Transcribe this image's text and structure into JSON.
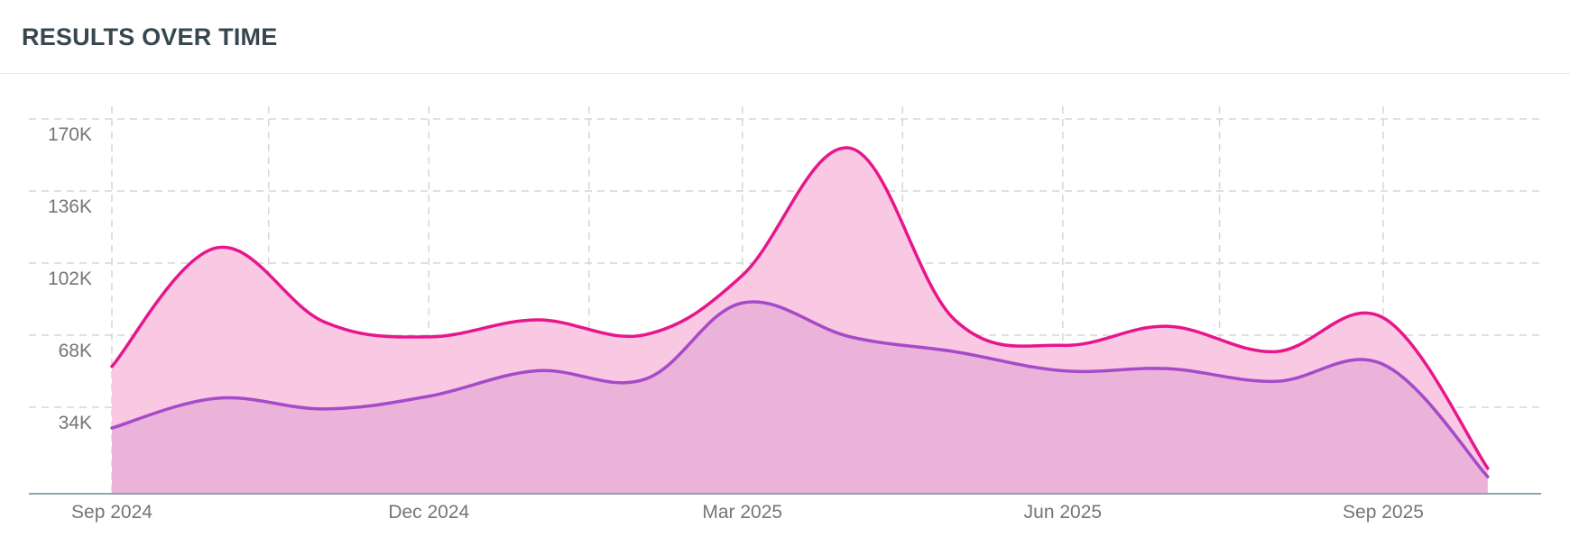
{
  "header": {
    "title": "RESULTS OVER TIME"
  },
  "chart_data": {
    "type": "area",
    "title": "RESULTS OVER TIME",
    "xlabel": "",
    "ylabel": "",
    "x": [
      "2024-09-01",
      "2024-10-01",
      "2024-11-01",
      "2024-12-01",
      "2025-01-01",
      "2025-02-01",
      "2025-03-01",
      "2025-04-01",
      "2025-05-01",
      "2025-06-01",
      "2025-07-01",
      "2025-08-01",
      "2025-09-01",
      "2025-10-01"
    ],
    "x_tick_labels": [
      "Sep 2024",
      "Dec 2024",
      "Mar 2025",
      "Jun 2025",
      "Sep 2025"
    ],
    "x_tick_values": [
      "2024-09-01",
      "2024-12-01",
      "2025-03-01",
      "2025-06-01",
      "2025-09-01"
    ],
    "grid_x": [
      "2024-09-01",
      "2024-10-16",
      "2024-12-01",
      "2025-01-16",
      "2025-03-01",
      "2025-04-16",
      "2025-06-01",
      "2025-07-16",
      "2025-09-01"
    ],
    "y_ticks": [
      34000,
      68000,
      102000,
      136000,
      170000
    ],
    "y_tick_labels": [
      "34K",
      "68K",
      "102K",
      "136K",
      "170K"
    ],
    "ylim": [
      0,
      170000
    ],
    "grid": true,
    "series": [
      {
        "color": "#e8168c",
        "fill": "#f9c8e3",
        "values": [
          60000,
          116000,
          81000,
          74000,
          82000,
          75000,
          103000,
          163000,
          82000,
          70000,
          79000,
          67000,
          83000,
          12000
        ]
      },
      {
        "color": "#a64ac9",
        "fill": "#e9aed8",
        "values": [
          31000,
          45000,
          40000,
          46000,
          58000,
          54000,
          90000,
          74000,
          67000,
          58000,
          59000,
          53000,
          61000,
          8000
        ]
      }
    ]
  }
}
